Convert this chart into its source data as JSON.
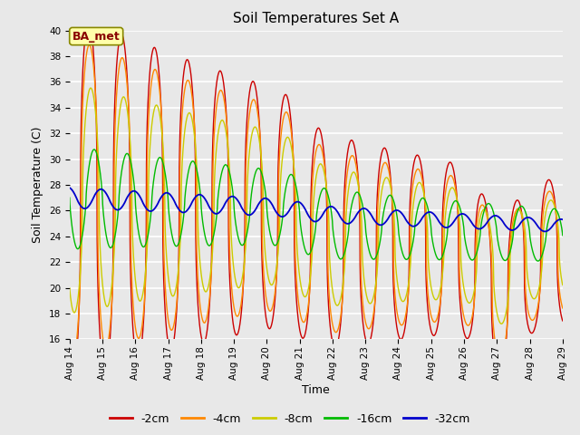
{
  "title": "Soil Temperatures Set A",
  "xlabel": "Time",
  "ylabel": "Soil Temperature (C)",
  "ylim": [
    16,
    40
  ],
  "xlim": [
    0,
    360
  ],
  "yticks": [
    16,
    18,
    20,
    22,
    24,
    26,
    28,
    30,
    32,
    34,
    36,
    38,
    40
  ],
  "xtick_labels": [
    "Aug 14",
    "Aug 15",
    "Aug 16",
    "Aug 17",
    "Aug 18",
    "Aug 19",
    "Aug 20",
    "Aug 21",
    "Aug 22",
    "Aug 23",
    "Aug 24",
    "Aug 25",
    "Aug 26",
    "Aug 27",
    "Aug 28",
    "Aug 29"
  ],
  "xtick_positions": [
    0,
    24,
    48,
    72,
    96,
    120,
    144,
    168,
    192,
    216,
    240,
    264,
    288,
    312,
    336,
    360
  ],
  "legend_labels": [
    "-2cm",
    "-4cm",
    "-8cm",
    "-16cm",
    "-32cm"
  ],
  "line_colors": [
    "#cc0000",
    "#ff8800",
    "#cccc00",
    "#00bb00",
    "#0000cc"
  ],
  "annotation_text": "BA_met",
  "annotation_fg": "#880000",
  "annotation_bg": "#ffffaa",
  "annotation_border": "#888800",
  "plot_bg": "#e8e8e8",
  "fig_bg": "#e8e8e8",
  "grid_color": "#ffffff",
  "title_fontsize": 11,
  "label_fontsize": 9,
  "tick_fontsize": 7.5
}
